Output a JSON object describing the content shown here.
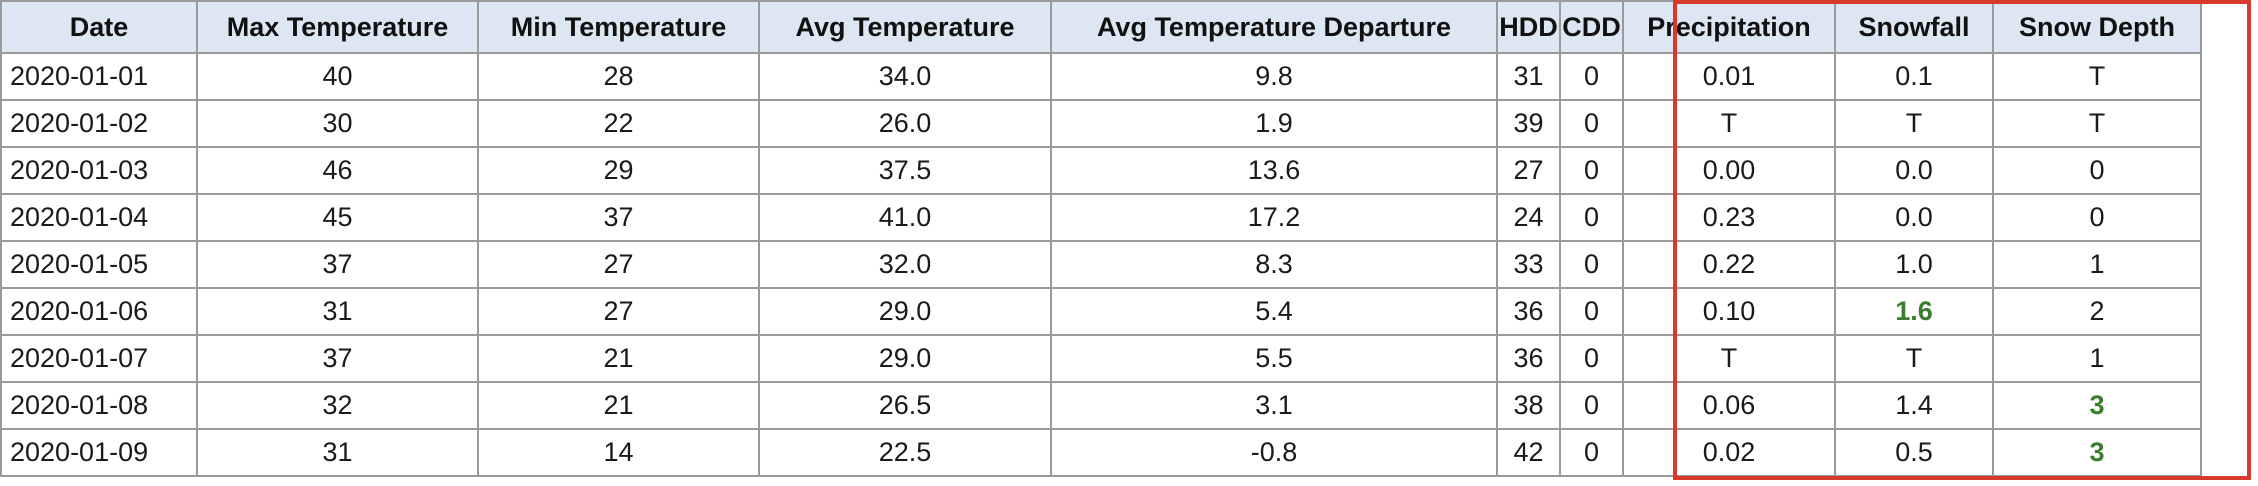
{
  "table": {
    "headers": [
      "Date",
      "Max Temperature",
      "Min Temperature",
      "Avg Temperature",
      "Avg Temperature Departure",
      "HDD",
      "CDD",
      "Precipitation",
      "Snowfall",
      "Snow Depth"
    ],
    "rows": [
      [
        "2020-01-01",
        "40",
        "28",
        "34.0",
        "9.8",
        "31",
        "0",
        "0.01",
        "0.1",
        "T"
      ],
      [
        "2020-01-02",
        "30",
        "22",
        "26.0",
        "1.9",
        "39",
        "0",
        "T",
        "T",
        "T"
      ],
      [
        "2020-01-03",
        "46",
        "29",
        "37.5",
        "13.6",
        "27",
        "0",
        "0.00",
        "0.0",
        "0"
      ],
      [
        "2020-01-04",
        "45",
        "37",
        "41.0",
        "17.2",
        "24",
        "0",
        "0.23",
        "0.0",
        "0"
      ],
      [
        "2020-01-05",
        "37",
        "27",
        "32.0",
        "8.3",
        "33",
        "0",
        "0.22",
        "1.0",
        "1"
      ],
      [
        "2020-01-06",
        "31",
        "27",
        "29.0",
        "5.4",
        "36",
        "0",
        "0.10",
        "1.6",
        "2"
      ],
      [
        "2020-01-07",
        "37",
        "21",
        "29.0",
        "5.5",
        "36",
        "0",
        "T",
        "T",
        "1"
      ],
      [
        "2020-01-08",
        "32",
        "21",
        "26.5",
        "3.1",
        "38",
        "0",
        "0.06",
        "1.4",
        "3"
      ],
      [
        "2020-01-09",
        "31",
        "14",
        "22.5",
        "-0.8",
        "42",
        "0",
        "0.02",
        "0.5",
        "3"
      ]
    ]
  },
  "colors": {
    "header_background": "#dce7f3",
    "highlight_box": "#d9392b",
    "highlight_value": "#3a7d2e",
    "cell_border": "#9a9a9a"
  }
}
